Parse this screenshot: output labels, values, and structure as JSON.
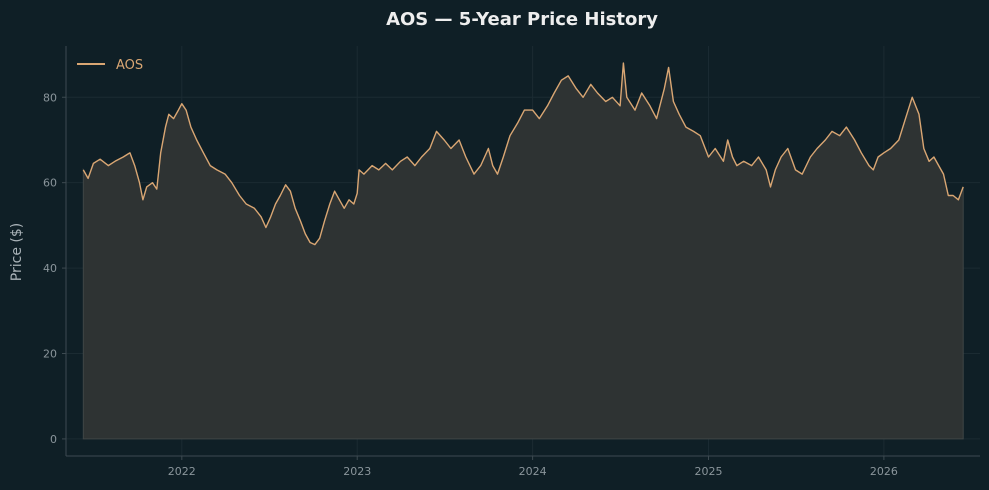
{
  "chart_data": {
    "type": "area",
    "title": "AOS — 5-Year Price History",
    "xlabel": "",
    "ylabel": "Price ($)",
    "x_ticks": [
      "2022",
      "2023",
      "2024",
      "2025",
      "2026"
    ],
    "y_ticks": [
      0,
      20,
      40,
      60,
      80
    ],
    "xlim": [
      "2021-05-05",
      "2026-07-20"
    ],
    "ylim": [
      -4,
      92
    ],
    "grid": true,
    "legend_position": "top-left",
    "series": [
      {
        "name": "AOS",
        "color": "#d9a673",
        "fill_color": "#2e3333",
        "points": [
          [
            "2021-06-10",
            63.0
          ],
          [
            "2021-06-20",
            61.0
          ],
          [
            "2021-07-01",
            64.5
          ],
          [
            "2021-07-15",
            65.5
          ],
          [
            "2021-08-01",
            64.0
          ],
          [
            "2021-08-15",
            65.0
          ],
          [
            "2021-09-01",
            66.0
          ],
          [
            "2021-09-15",
            67.0
          ],
          [
            "2021-09-25",
            64.0
          ],
          [
            "2021-10-05",
            60.0
          ],
          [
            "2021-10-12",
            56.0
          ],
          [
            "2021-10-20",
            59.0
          ],
          [
            "2021-11-01",
            60.0
          ],
          [
            "2021-11-10",
            58.5
          ],
          [
            "2021-11-18",
            67.0
          ],
          [
            "2021-11-28",
            73.0
          ],
          [
            "2021-12-05",
            76.0
          ],
          [
            "2021-12-15",
            75.0
          ],
          [
            "2021-12-25",
            77.0
          ],
          [
            "2022-01-01",
            78.5
          ],
          [
            "2022-01-10",
            77.0
          ],
          [
            "2022-01-20",
            73.0
          ],
          [
            "2022-02-01",
            70.0
          ],
          [
            "2022-02-15",
            67.0
          ],
          [
            "2022-03-01",
            64.0
          ],
          [
            "2022-03-15",
            63.0
          ],
          [
            "2022-04-01",
            62.0
          ],
          [
            "2022-04-15",
            60.0
          ],
          [
            "2022-05-01",
            57.0
          ],
          [
            "2022-05-15",
            55.0
          ],
          [
            "2022-06-01",
            54.0
          ],
          [
            "2022-06-15",
            52.0
          ],
          [
            "2022-06-25",
            49.5
          ],
          [
            "2022-07-05",
            52.0
          ],
          [
            "2022-07-15",
            55.0
          ],
          [
            "2022-07-25",
            57.0
          ],
          [
            "2022-08-05",
            59.5
          ],
          [
            "2022-08-15",
            58.0
          ],
          [
            "2022-08-25",
            54.0
          ],
          [
            "2022-09-05",
            51.0
          ],
          [
            "2022-09-15",
            48.0
          ],
          [
            "2022-09-25",
            46.0
          ],
          [
            "2022-10-05",
            45.5
          ],
          [
            "2022-10-15",
            47.0
          ],
          [
            "2022-10-25",
            51.0
          ],
          [
            "2022-11-05",
            55.0
          ],
          [
            "2022-11-15",
            58.0
          ],
          [
            "2022-11-25",
            56.0
          ],
          [
            "2022-12-05",
            54.0
          ],
          [
            "2022-12-15",
            56.0
          ],
          [
            "2022-12-25",
            55.0
          ],
          [
            "2023-01-01",
            57.5
          ],
          [
            "2023-01-05",
            63.0
          ],
          [
            "2023-01-15",
            62.0
          ],
          [
            "2023-02-01",
            64.0
          ],
          [
            "2023-02-15",
            63.0
          ],
          [
            "2023-03-01",
            64.5
          ],
          [
            "2023-03-15",
            63.0
          ],
          [
            "2023-04-01",
            65.0
          ],
          [
            "2023-04-15",
            66.0
          ],
          [
            "2023-05-01",
            64.0
          ],
          [
            "2023-05-15",
            66.0
          ],
          [
            "2023-06-01",
            68.0
          ],
          [
            "2023-06-15",
            72.0
          ],
          [
            "2023-07-01",
            70.0
          ],
          [
            "2023-07-15",
            68.0
          ],
          [
            "2023-08-01",
            70.0
          ],
          [
            "2023-08-15",
            66.0
          ],
          [
            "2023-09-01",
            62.0
          ],
          [
            "2023-09-15",
            64.0
          ],
          [
            "2023-10-01",
            68.0
          ],
          [
            "2023-10-10",
            64.0
          ],
          [
            "2023-10-20",
            62.0
          ],
          [
            "2023-11-01",
            66.0
          ],
          [
            "2023-11-15",
            71.0
          ],
          [
            "2023-12-01",
            74.0
          ],
          [
            "2023-12-15",
            77.0
          ],
          [
            "2024-01-01",
            77.0
          ],
          [
            "2024-01-15",
            75.0
          ],
          [
            "2024-02-01",
            78.0
          ],
          [
            "2024-02-15",
            81.0
          ],
          [
            "2024-03-01",
            84.0
          ],
          [
            "2024-03-15",
            85.0
          ],
          [
            "2024-04-01",
            82.0
          ],
          [
            "2024-04-15",
            80.0
          ],
          [
            "2024-05-01",
            83.0
          ],
          [
            "2024-05-15",
            81.0
          ],
          [
            "2024-06-01",
            79.0
          ],
          [
            "2024-06-15",
            80.0
          ],
          [
            "2024-07-01",
            78.0
          ],
          [
            "2024-07-08",
            88.0
          ],
          [
            "2024-07-15",
            80.0
          ],
          [
            "2024-08-01",
            77.0
          ],
          [
            "2024-08-15",
            81.0
          ],
          [
            "2024-09-01",
            78.0
          ],
          [
            "2024-09-15",
            75.0
          ],
          [
            "2024-10-01",
            82.0
          ],
          [
            "2024-10-10",
            87.0
          ],
          [
            "2024-10-20",
            79.0
          ],
          [
            "2024-11-01",
            76.0
          ],
          [
            "2024-11-15",
            73.0
          ],
          [
            "2024-12-01",
            72.0
          ],
          [
            "2024-12-15",
            71.0
          ],
          [
            "2025-01-01",
            66.0
          ],
          [
            "2025-01-15",
            68.0
          ],
          [
            "2025-02-01",
            65.0
          ],
          [
            "2025-02-10",
            70.0
          ],
          [
            "2025-02-20",
            66.0
          ],
          [
            "2025-03-01",
            64.0
          ],
          [
            "2025-03-15",
            65.0
          ],
          [
            "2025-04-01",
            64.0
          ],
          [
            "2025-04-15",
            66.0
          ],
          [
            "2025-05-01",
            63.0
          ],
          [
            "2025-05-10",
            59.0
          ],
          [
            "2025-05-20",
            63.0
          ],
          [
            "2025-06-01",
            66.0
          ],
          [
            "2025-06-15",
            68.0
          ],
          [
            "2025-07-01",
            63.0
          ],
          [
            "2025-07-15",
            62.0
          ],
          [
            "2025-08-01",
            66.0
          ],
          [
            "2025-08-15",
            68.0
          ],
          [
            "2025-09-01",
            70.0
          ],
          [
            "2025-09-15",
            72.0
          ],
          [
            "2025-10-01",
            71.0
          ],
          [
            "2025-10-15",
            73.0
          ],
          [
            "2025-11-01",
            70.0
          ],
          [
            "2025-11-15",
            67.0
          ],
          [
            "2025-12-01",
            64.0
          ],
          [
            "2025-12-10",
            63.0
          ],
          [
            "2025-12-20",
            66.0
          ],
          [
            "2026-01-01",
            67.0
          ],
          [
            "2026-01-15",
            68.0
          ],
          [
            "2026-02-01",
            70.0
          ],
          [
            "2026-02-15",
            75.0
          ],
          [
            "2026-03-01",
            80.0
          ],
          [
            "2026-03-15",
            76.0
          ],
          [
            "2026-03-25",
            68.0
          ],
          [
            "2026-04-05",
            65.0
          ],
          [
            "2026-04-15",
            66.0
          ],
          [
            "2026-04-25",
            64.0
          ],
          [
            "2026-05-05",
            62.0
          ],
          [
            "2026-05-15",
            57.0
          ],
          [
            "2026-05-25",
            57.0
          ],
          [
            "2026-06-05",
            56.0
          ],
          [
            "2026-06-15",
            59.0
          ]
        ]
      }
    ]
  }
}
